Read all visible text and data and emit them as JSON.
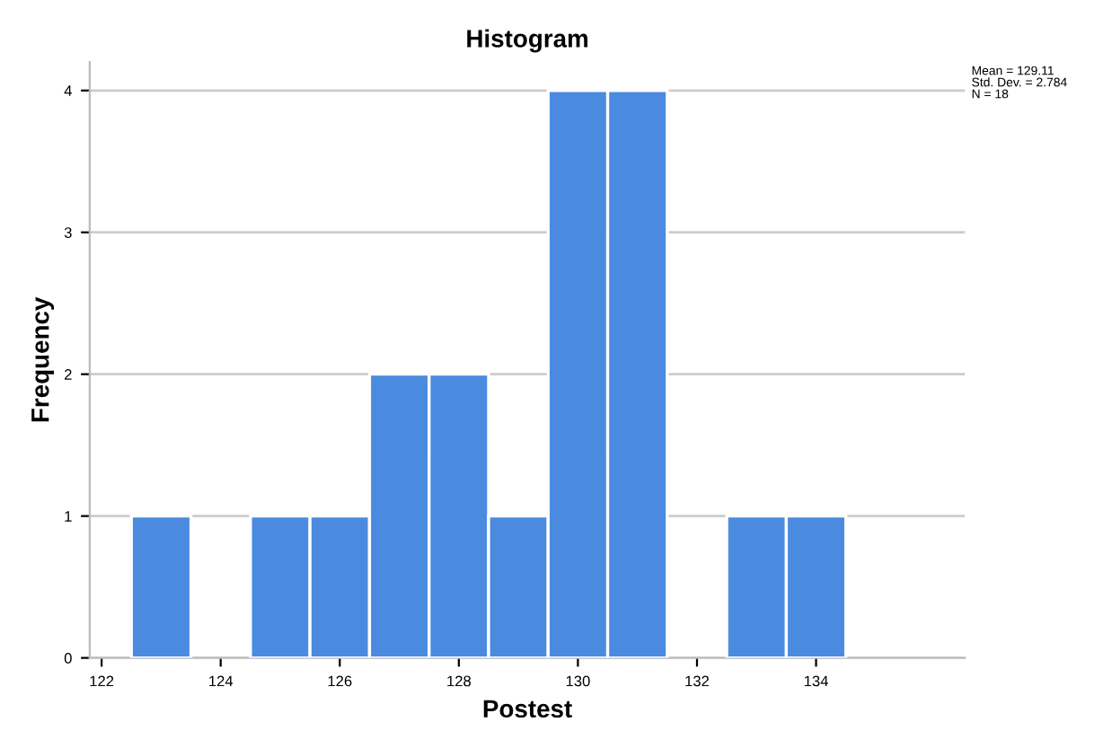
{
  "chart_data": {
    "type": "histogram",
    "title": "Histogram",
    "xlabel": "Postest",
    "ylabel": "Frequency",
    "bins": [
      122.5,
      123.5,
      124.5,
      125.5,
      126.5,
      127.5,
      128.5,
      129.5,
      130.5,
      131.5,
      132.5,
      133.5,
      134.5
    ],
    "values": [
      1,
      0,
      1,
      1,
      2,
      2,
      1,
      4,
      4,
      0,
      1,
      1
    ],
    "color": "#4a8be0",
    "xlim": [
      121.8,
      136.5
    ],
    "xticks": [
      122,
      124,
      126,
      128,
      130,
      132,
      134
    ],
    "ylim": [
      0,
      4.2
    ],
    "yticks": [
      0,
      1,
      2,
      3,
      4
    ],
    "grid": "y",
    "annotations": [
      "Mean = 129.11\nStd. Dev. = 2.784\nN = 18"
    ]
  }
}
